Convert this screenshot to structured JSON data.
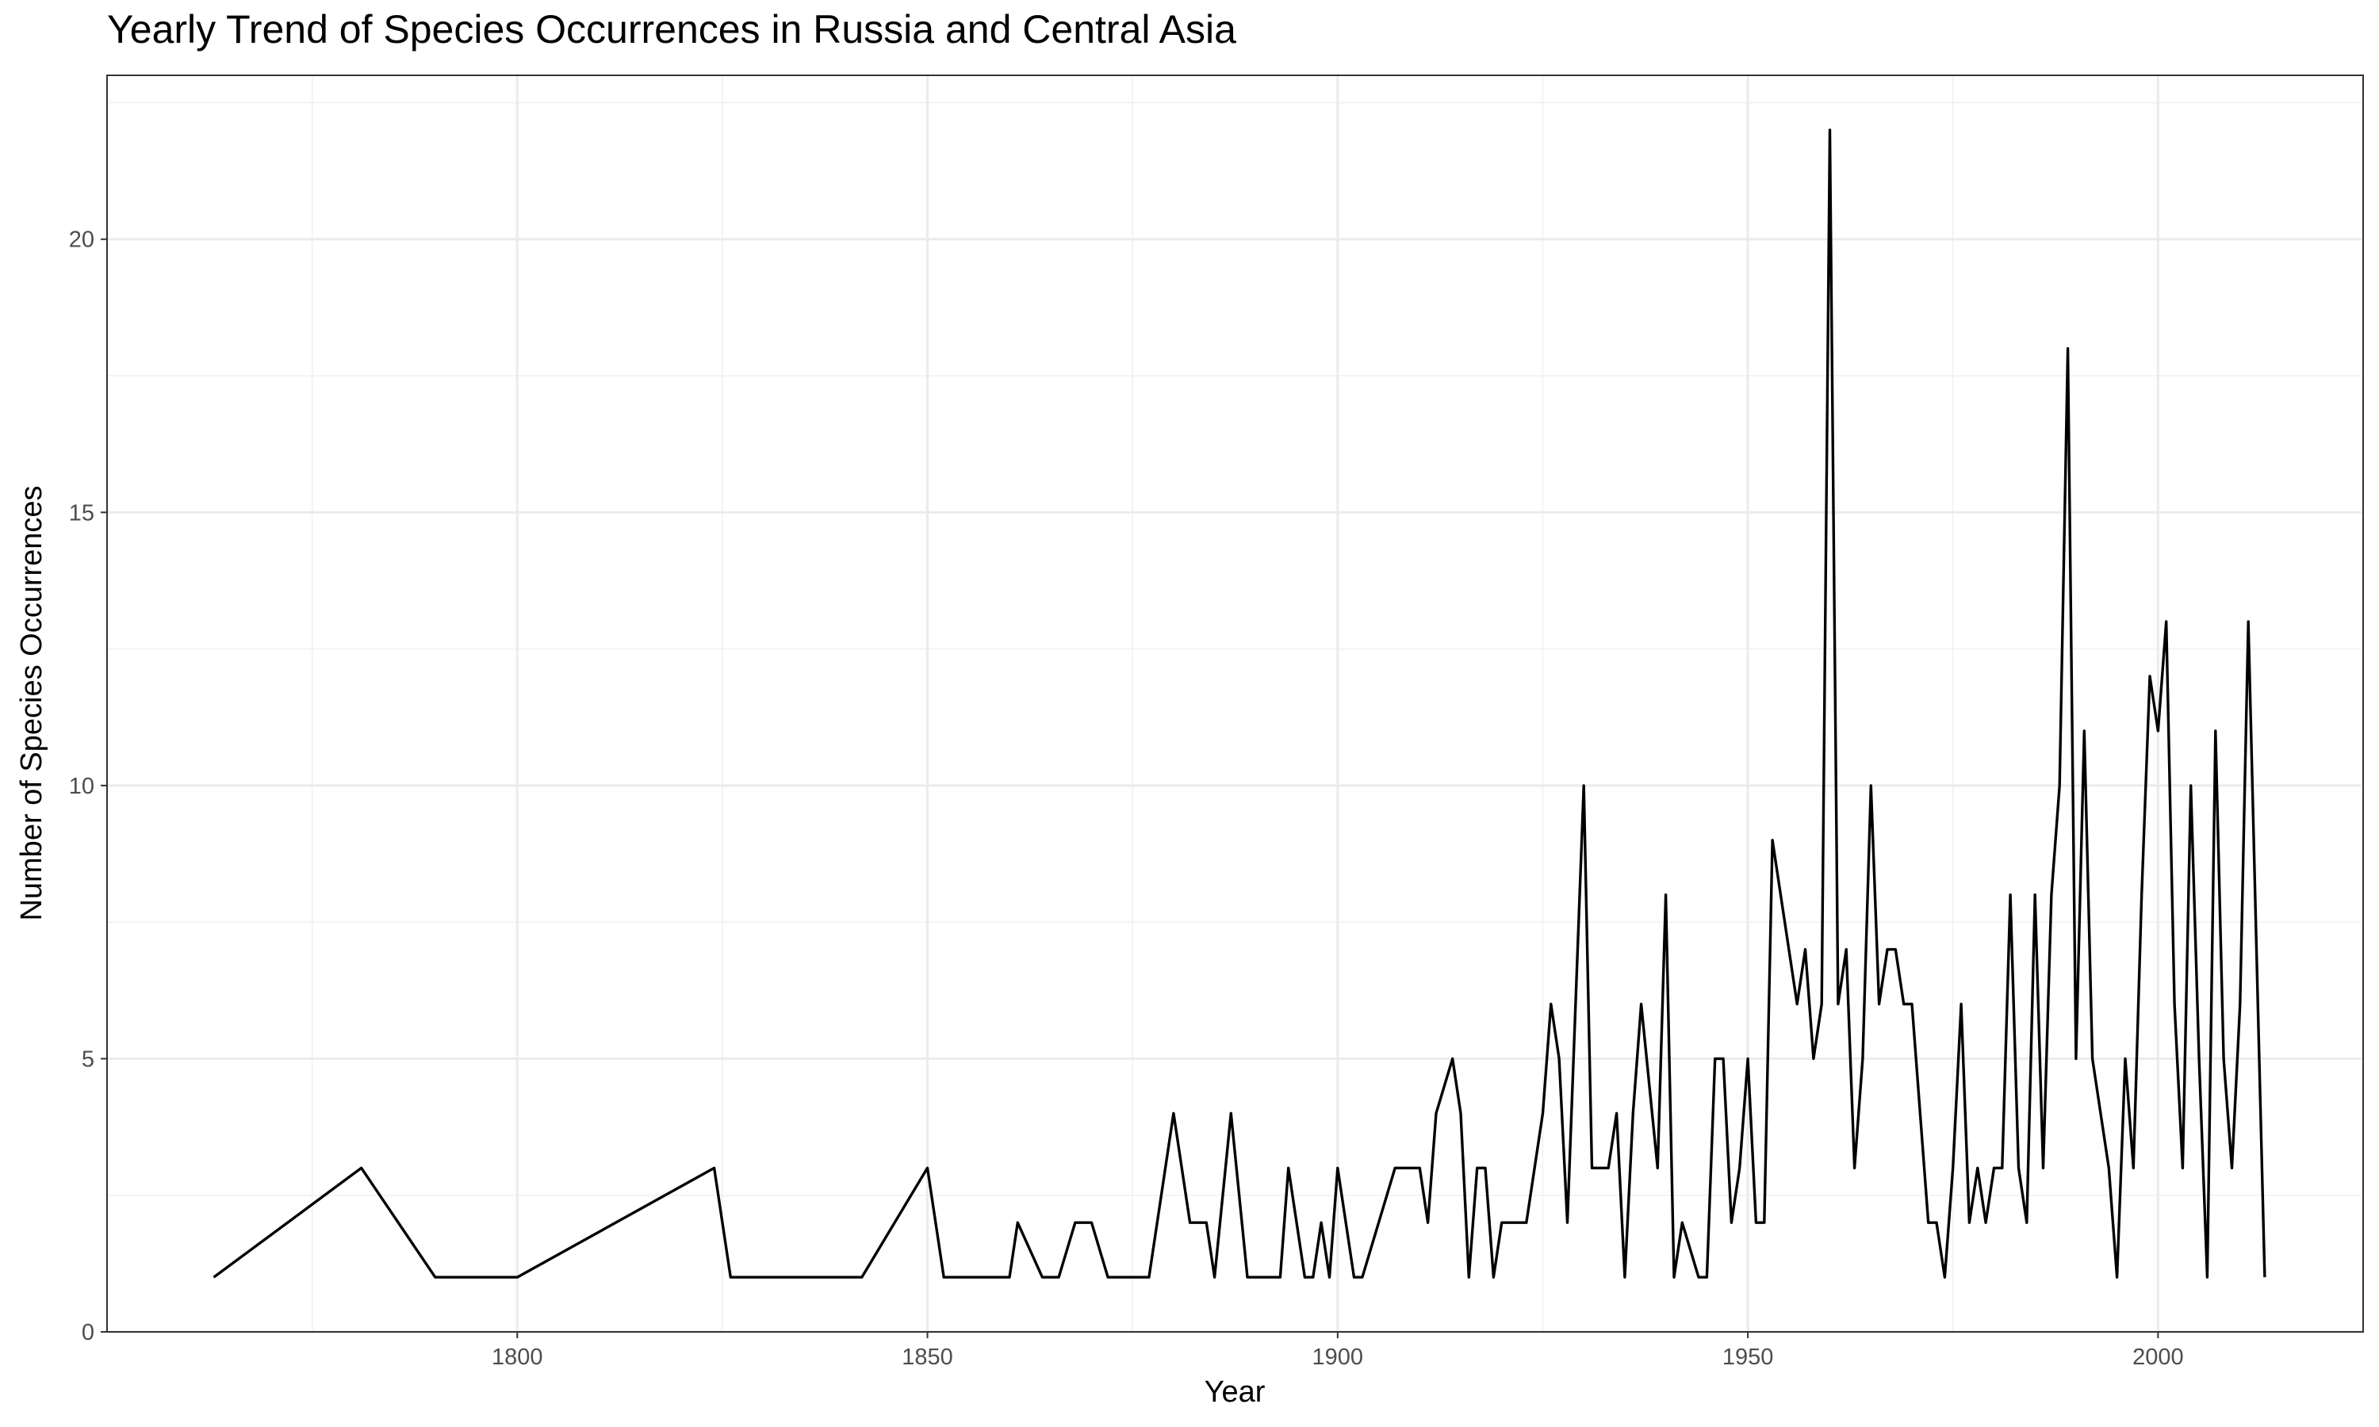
{
  "chart_data": {
    "type": "line",
    "title": "Yearly Trend of Species Occurrences in Russia and Central Asia",
    "xlabel": "Year",
    "ylabel": "Number of Species Occurrences",
    "xlim": [
      1750,
      2025
    ],
    "ylim": [
      0,
      23
    ],
    "x_ticks": [
      1800,
      1850,
      1900,
      1950,
      2000
    ],
    "y_ticks": [
      0,
      5,
      10,
      15,
      20
    ],
    "grid": true,
    "line_color": "#000000",
    "series": [
      {
        "x": [
          1763,
          1781,
          1790,
          1800,
          1824,
          1826,
          1842,
          1850,
          1852,
          1860,
          1861,
          1864,
          1866,
          1868,
          1870,
          1872,
          1877,
          1880,
          1882,
          1884,
          1885,
          1887,
          1889,
          1893,
          1894,
          1896,
          1897,
          1898,
          1899,
          1900,
          1902,
          1903,
          1907,
          1910,
          1911,
          1912,
          1914,
          1915,
          1916,
          1917,
          1918,
          1919,
          1920,
          1921,
          1923,
          1925,
          1926,
          1927,
          1928,
          1930,
          1931,
          1933,
          1934,
          1935,
          1936,
          1937,
          1939,
          1940,
          1941,
          1942,
          1944,
          1945,
          1946,
          1947,
          1948,
          1949,
          1950,
          1951,
          1952,
          1953,
          1956,
          1957,
          1958,
          1959,
          1960,
          1961,
          1962,
          1963,
          1964,
          1965,
          1966,
          1967,
          1968,
          1969,
          1970,
          1972,
          1973,
          1974,
          1975,
          1976,
          1977,
          1978,
          1979,
          1980,
          1981,
          1982,
          1983,
          1984,
          1985,
          1986,
          1987,
          1988,
          1989,
          1990,
          1991,
          1992,
          1994,
          1995,
          1996,
          1997,
          1998,
          1999,
          2000,
          2001,
          2002,
          2003,
          2004,
          2005,
          2006,
          2007,
          2008,
          2009,
          2010,
          2011,
          2012,
          2013
        ],
        "values": [
          1,
          3,
          1,
          1,
          3,
          1,
          1,
          3,
          1,
          1,
          2,
          1,
          1,
          2,
          2,
          1,
          1,
          4,
          2,
          2,
          1,
          4,
          1,
          1,
          3,
          1,
          1,
          2,
          1,
          3,
          1,
          1,
          3,
          3,
          2,
          4,
          5,
          4,
          1,
          3,
          3,
          1,
          2,
          2,
          2,
          4,
          6,
          5,
          2,
          10,
          3,
          3,
          4,
          1,
          4,
          6,
          3,
          8,
          1,
          2,
          1,
          1,
          5,
          5,
          2,
          3,
          5,
          2,
          2,
          9,
          6,
          7,
          5,
          6,
          22,
          6,
          7,
          3,
          5,
          10,
          6,
          7,
          7,
          6,
          6,
          2,
          2,
          1,
          3,
          6,
          2,
          3,
          2,
          3,
          3,
          8,
          3,
          2,
          8,
          3,
          8,
          10,
          18,
          5,
          11,
          5,
          3,
          1,
          5,
          3,
          8,
          12,
          11,
          13,
          6,
          3,
          10,
          5,
          1,
          11,
          5,
          3,
          6,
          13,
          7,
          1
        ]
      }
    ]
  }
}
